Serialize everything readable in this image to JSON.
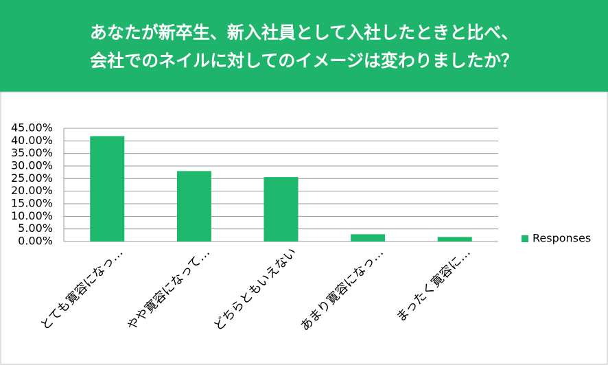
{
  "chart_data": {
    "type": "bar",
    "title": [
      "あなたが新卒生、新入社員として入社したときと比べ、",
      "会社でのネイルに対してのイメージは変わりましたか？"
    ],
    "categories": [
      "とても寛容になっ…",
      "やや寛容になって…",
      "どちらともいえない",
      "あまり寛容になっ…",
      "まったく寛容に…"
    ],
    "series": [
      {
        "name": "Responses",
        "color": "#1db86c",
        "values": [
          41.9,
          28.0,
          25.6,
          2.9,
          1.8
        ]
      }
    ],
    "ylim": [
      0,
      45
    ],
    "yticks": [
      {
        "value": 0,
        "label": "0.00%"
      },
      {
        "value": 5,
        "label": "5.00%"
      },
      {
        "value": 10,
        "label": "10.00%"
      },
      {
        "value": 15,
        "label": "15.00%"
      },
      {
        "value": 20,
        "label": "20.00%"
      },
      {
        "value": 25,
        "label": "25.00%"
      },
      {
        "value": 30,
        "label": "30.00%"
      },
      {
        "value": 35,
        "label": "35.00%"
      },
      {
        "value": 40,
        "label": "40.00%"
      },
      {
        "value": 45,
        "label": "45.00%"
      }
    ],
    "grid": true,
    "legend": "right",
    "header_color": "#1fb46b"
  }
}
